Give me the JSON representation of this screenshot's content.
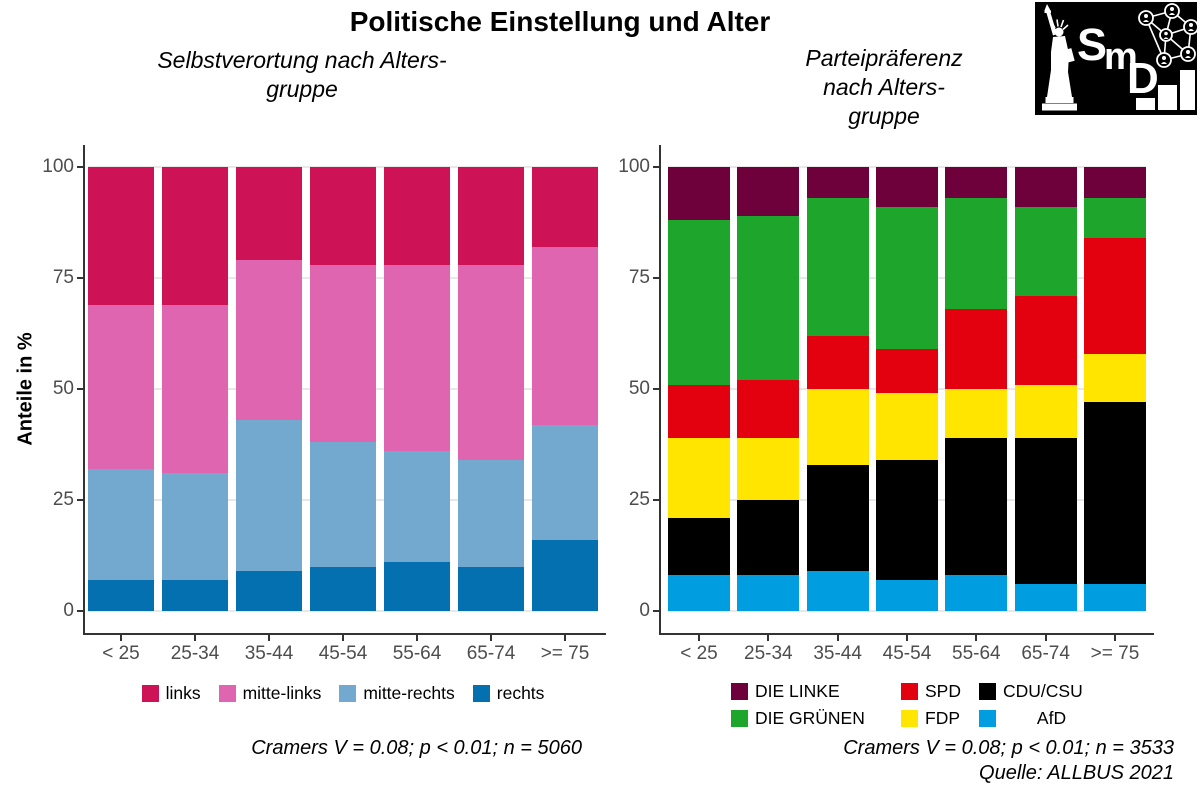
{
  "title": "Politische Einstellung und Alter",
  "logo": {
    "letters": [
      "S",
      "m",
      "D"
    ]
  },
  "chart_data": [
    {
      "type": "bar",
      "subtype": "stacked-percent",
      "subtitle_lines": [
        "Selbstverortung nach Alters-",
        "gruppe"
      ],
      "ylabel": "Anteile in %",
      "ylim": [
        0,
        100
      ],
      "yticks": [
        0,
        25,
        50,
        75,
        100
      ],
      "categories": [
        "< 25",
        "25-34",
        "35-44",
        "45-54",
        "55-64",
        "65-74",
        ">= 75"
      ],
      "series": [
        {
          "name": "rechts",
          "color": "#0570B0",
          "values": [
            7,
            7,
            9,
            10,
            11,
            10,
            16
          ]
        },
        {
          "name": "mitte-rechts",
          "color": "#74A9CF",
          "values": [
            25,
            24,
            34,
            28,
            25,
            24,
            26
          ]
        },
        {
          "name": "mitte-links",
          "color": "#DF65B0",
          "values": [
            37,
            38,
            36,
            40,
            42,
            44,
            40
          ]
        },
        {
          "name": "links",
          "color": "#CE1256",
          "values": [
            31,
            31,
            21,
            22,
            22,
            22,
            18
          ]
        }
      ],
      "legend_rows": [
        [
          "links",
          "mitte-links",
          "mitte-rechts",
          "rechts"
        ]
      ],
      "caption_lines": [
        "Cramers V = 0.08; p < 0.01; n = 5060"
      ]
    },
    {
      "type": "bar",
      "subtype": "stacked-percent",
      "subtitle_lines": [
        "Parteipräferenz",
        "nach Alters-",
        "gruppe"
      ],
      "ylabel": "",
      "ylim": [
        0,
        100
      ],
      "yticks": [
        0,
        25,
        50,
        75,
        100
      ],
      "categories": [
        "< 25",
        "25-34",
        "35-44",
        "45-54",
        "55-64",
        "65-74",
        ">= 75"
      ],
      "series": [
        {
          "name": "AfD",
          "color": "#009EE0",
          "values": [
            8,
            8,
            9,
            7,
            8,
            6,
            6
          ]
        },
        {
          "name": "CDU/CSU",
          "color": "#000000",
          "values": [
            13,
            17,
            24,
            27,
            31,
            33,
            41
          ]
        },
        {
          "name": "FDP",
          "color": "#FFE500",
          "values": [
            18,
            14,
            17,
            15,
            11,
            12,
            11
          ]
        },
        {
          "name": "SPD",
          "color": "#E3000F",
          "values": [
            12,
            13,
            12,
            10,
            18,
            20,
            26
          ]
        },
        {
          "name": "DIE GRÜNEN",
          "color": "#1EA52C",
          "values": [
            37,
            37,
            31,
            32,
            25,
            20,
            9
          ]
        },
        {
          "name": "DIE LINKE",
          "color": "#6E013C",
          "values": [
            12,
            11,
            7,
            9,
            7,
            9,
            7
          ]
        }
      ],
      "legend_rows": [
        [
          "DIE LINKE",
          "SPD",
          "CDU/CSU"
        ],
        [
          "DIE GRÜNEN",
          "FDP",
          "AfD"
        ]
      ],
      "caption_lines": [
        "Cramers V = 0.08; p < 0.01; n = 3533",
        "Quelle: ALLBUS 2021"
      ]
    }
  ]
}
